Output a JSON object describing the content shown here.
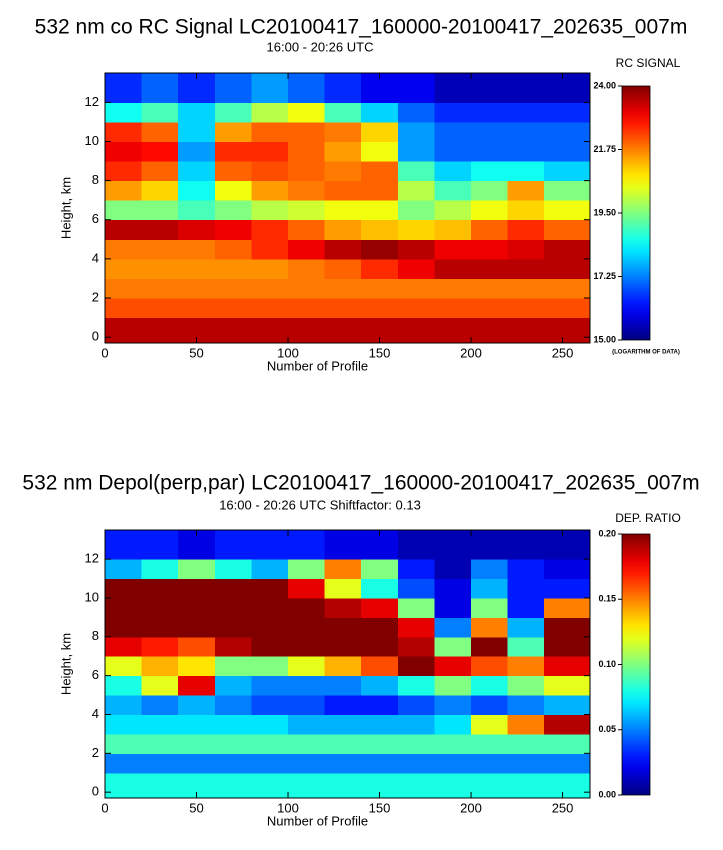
{
  "chart_data": [
    {
      "type": "heatmap",
      "title": "532 nm co RC Signal LC20100417_160000-20100417_202635_007m",
      "subtitle": "16:00 - 20:26 UTC",
      "x_label": "Number of Profile",
      "y_label": "Height, km",
      "colorbar_label": "RC SIGNAL",
      "colorbar_note": "(LOGARITHM OF DATA)",
      "xlim": [
        0,
        265
      ],
      "xticks": [
        0,
        50,
        100,
        150,
        200,
        250
      ],
      "ylim": [
        -0.3,
        13.5
      ],
      "yticks": [
        0,
        2,
        4,
        6,
        8,
        10,
        12
      ],
      "zlim": [
        15,
        24
      ],
      "zticks": [
        {
          "value": 15,
          "label": "15.00"
        },
        {
          "value": 17.25,
          "label": "17.25"
        },
        {
          "value": 19.5,
          "label": "19.50"
        },
        {
          "value": 21.75,
          "label": "21.75"
        },
        {
          "value": 24,
          "label": "24.00"
        }
      ],
      "colormap": "jet",
      "x": [
        10,
        30,
        50,
        70,
        90,
        110,
        130,
        150,
        170,
        190,
        210,
        230,
        250
      ],
      "y": [
        0.5,
        1.5,
        2.5,
        3.5,
        4.5,
        5.5,
        6.5,
        7.5,
        8.5,
        9.5,
        10.5,
        11.5,
        12.5
      ],
      "z": [
        [
          23.5,
          23.5,
          23.5,
          23.5,
          23.5,
          23.5,
          23.5,
          23.5,
          23.5,
          23.5,
          23.5,
          23.5,
          23.5
        ],
        [
          22.2,
          22.2,
          22.2,
          22.2,
          22.2,
          22.2,
          22.2,
          22.2,
          22.2,
          22.2,
          22.2,
          22.2,
          22.2
        ],
        [
          21.8,
          21.8,
          21.8,
          21.8,
          21.8,
          21.8,
          21.8,
          21.8,
          21.8,
          21.8,
          21.8,
          21.8,
          21.8
        ],
        [
          21.6,
          21.6,
          21.6,
          21.6,
          21.6,
          21.8,
          22,
          22.5,
          23,
          23.5,
          23.5,
          23.5,
          23.5
        ],
        [
          21.8,
          21.8,
          21.8,
          22,
          22.5,
          23,
          23.5,
          23.8,
          23.5,
          23,
          23,
          23.2,
          23.5
        ],
        [
          23.5,
          23.5,
          23.2,
          23,
          22.5,
          22,
          21.5,
          21.2,
          21,
          21.2,
          22,
          22.5,
          22
        ],
        [
          19.5,
          19.5,
          19,
          19.5,
          20,
          20.2,
          20.5,
          20.5,
          19.5,
          20,
          20.5,
          21,
          20.5
        ],
        [
          21.5,
          21,
          18.5,
          20.5,
          21.5,
          21.8,
          22,
          22,
          20,
          19,
          19.5,
          21.5,
          19.5
        ],
        [
          22.5,
          22,
          18,
          22,
          22.2,
          22,
          21.8,
          22,
          19,
          18,
          18.5,
          18.5,
          18
        ],
        [
          23,
          22.8,
          17.5,
          22.5,
          22.5,
          22,
          21.5,
          20.5,
          17.5,
          17,
          17,
          17,
          17
        ],
        [
          22.5,
          22,
          18,
          21.5,
          22,
          22,
          21.8,
          21,
          17.5,
          17,
          17,
          17,
          17
        ],
        [
          18.5,
          19,
          18,
          19,
          20,
          20.5,
          19,
          18,
          17,
          16.5,
          16.5,
          16.5,
          16.5
        ],
        [
          16.5,
          17,
          16.5,
          17,
          17.5,
          17,
          16.5,
          16,
          16,
          15.5,
          15.5,
          15.5,
          15.5
        ]
      ]
    },
    {
      "type": "heatmap",
      "title": "532 nm Depol(perp,par) LC20100417_160000-20100417_202635_007m",
      "subtitle": "16:00 - 20:26 UTC Shiftfactor: 0.13",
      "x_label": "Number of Profile",
      "y_label": "Height, km",
      "colorbar_label": "DEP. RATIO",
      "xlim": [
        0,
        265
      ],
      "xticks": [
        0,
        50,
        100,
        150,
        200,
        250
      ],
      "ylim": [
        -0.3,
        13.5
      ],
      "yticks": [
        0,
        2,
        4,
        6,
        8,
        10,
        12
      ],
      "zlim": [
        0,
        0.2
      ],
      "zticks": [
        {
          "value": 0,
          "label": "0.00"
        },
        {
          "value": 0.05,
          "label": "0.05"
        },
        {
          "value": 0.1,
          "label": "0.10"
        },
        {
          "value": 0.15,
          "label": "0.15"
        },
        {
          "value": 0.2,
          "label": "0.20"
        }
      ],
      "colormap": "jet",
      "x": [
        10,
        30,
        50,
        70,
        90,
        110,
        130,
        150,
        170,
        190,
        210,
        230,
        250
      ],
      "y": [
        0.5,
        1.5,
        2.5,
        3.5,
        4.5,
        5.5,
        6.5,
        7.5,
        8.5,
        9.5,
        10.5,
        11.5,
        12.5
      ],
      "z": [
        [
          0.08,
          0.08,
          0.08,
          0.08,
          0.08,
          0.08,
          0.08,
          0.08,
          0.08,
          0.08,
          0.08,
          0.08,
          0.08
        ],
        [
          0.05,
          0.05,
          0.05,
          0.05,
          0.05,
          0.05,
          0.05,
          0.05,
          0.05,
          0.05,
          0.05,
          0.05,
          0.05
        ],
        [
          0.09,
          0.09,
          0.09,
          0.09,
          0.09,
          0.09,
          0.09,
          0.09,
          0.09,
          0.09,
          0.09,
          0.09,
          0.09
        ],
        [
          0.07,
          0.07,
          0.07,
          0.07,
          0.07,
          0.06,
          0.06,
          0.06,
          0.06,
          0.07,
          0.12,
          0.15,
          0.19
        ],
        [
          0.06,
          0.05,
          0.06,
          0.05,
          0.04,
          0.04,
          0.03,
          0.03,
          0.04,
          0.05,
          0.04,
          0.05,
          0.06
        ],
        [
          0.08,
          0.12,
          0.18,
          0.06,
          0.05,
          0.05,
          0.05,
          0.06,
          0.08,
          0.1,
          0.08,
          0.1,
          0.12
        ],
        [
          0.12,
          0.14,
          0.13,
          0.1,
          0.1,
          0.12,
          0.14,
          0.16,
          0.2,
          0.18,
          0.16,
          0.15,
          0.18
        ],
        [
          0.18,
          0.17,
          0.16,
          0.19,
          0.2,
          0.2,
          0.2,
          0.2,
          0.19,
          0.1,
          0.2,
          0.09,
          0.2
        ],
        [
          0.2,
          0.2,
          0.2,
          0.2,
          0.2,
          0.2,
          0.2,
          0.2,
          0.18,
          0.05,
          0.15,
          0.06,
          0.2
        ],
        [
          0.2,
          0.2,
          0.2,
          0.2,
          0.2,
          0.2,
          0.19,
          0.18,
          0.1,
          0.02,
          0.1,
          0.03,
          0.15
        ],
        [
          0.2,
          0.2,
          0.2,
          0.2,
          0.2,
          0.18,
          0.12,
          0.08,
          0.04,
          0.02,
          0.06,
          0.03,
          0.03
        ],
        [
          0.06,
          0.08,
          0.1,
          0.08,
          0.06,
          0.1,
          0.15,
          0.1,
          0.03,
          0.01,
          0.05,
          0.03,
          0.02
        ],
        [
          0.03,
          0.03,
          0.02,
          0.03,
          0.03,
          0.03,
          0.02,
          0.02,
          0.01,
          0.01,
          0.01,
          0.01,
          0.01
        ]
      ]
    }
  ]
}
